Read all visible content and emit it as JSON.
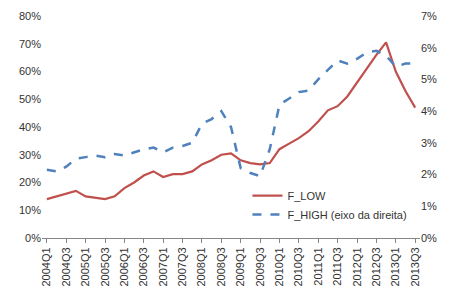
{
  "chart_data": {
    "type": "line",
    "categories": [
      "2004Q1",
      null,
      "2004Q3",
      null,
      "2005Q1",
      null,
      "2005Q3",
      null,
      "2006Q1",
      null,
      "2006Q3",
      null,
      "2007Q1",
      null,
      "2007Q3",
      null,
      "2008Q1",
      null,
      "2008Q3",
      null,
      "2009Q1",
      null,
      "2009Q3",
      null,
      "2010Q1",
      null,
      "2010Q3",
      null,
      "2011Q1",
      null,
      "2011Q3",
      null,
      "2012Q1",
      null,
      "2012Q3",
      null,
      "2013Q1",
      null,
      "2013Q3"
    ],
    "series": [
      {
        "name": "F_LOW",
        "color": "#c0504d",
        "line_style": "solid",
        "axis": "y",
        "values": [
          14,
          15,
          16,
          17,
          15,
          14.5,
          14,
          15,
          18,
          20,
          22.5,
          24,
          22,
          23,
          23,
          24,
          26.5,
          28,
          30,
          30.5,
          28,
          27,
          26.5,
          27,
          32,
          34,
          36,
          38.5,
          42,
          46,
          47.5,
          51,
          56,
          61,
          66,
          70.5,
          60,
          53,
          47
        ]
      },
      {
        "name": "F_HIGH (eixo da direita)",
        "color": "#4f81bd",
        "line_style": "dash",
        "axis": "y2",
        "values": [
          2.15,
          2.1,
          2.25,
          2.5,
          2.55,
          2.6,
          2.55,
          2.65,
          2.6,
          2.7,
          2.8,
          2.85,
          2.7,
          2.85,
          2.9,
          3.0,
          3.6,
          3.75,
          4.0,
          3.5,
          2.2,
          2.05,
          1.95,
          2.8,
          4.2,
          4.4,
          4.6,
          4.65,
          5.0,
          5.3,
          5.6,
          5.5,
          5.65,
          5.85,
          5.9,
          5.75,
          5.4,
          5.5,
          5.5
        ]
      }
    ],
    "ylim": [
      0,
      80
    ],
    "yticks": [
      {
        "value": 0,
        "label": "0%"
      },
      {
        "value": 10,
        "label": "10%"
      },
      {
        "value": 20,
        "label": "20%"
      },
      {
        "value": 30,
        "label": "30%"
      },
      {
        "value": 40,
        "label": "40%"
      },
      {
        "value": 50,
        "label": "50%"
      },
      {
        "value": 60,
        "label": "60%"
      },
      {
        "value": 70,
        "label": "70%"
      },
      {
        "value": 80,
        "label": "80%"
      }
    ],
    "y2lim": [
      0,
      7
    ],
    "y2ticks": [
      {
        "value": 0,
        "label": "0%"
      },
      {
        "value": 1,
        "label": "1%"
      },
      {
        "value": 2,
        "label": "2%"
      },
      {
        "value": 3,
        "label": "3%"
      },
      {
        "value": 4,
        "label": "4%"
      },
      {
        "value": 5,
        "label": "5%"
      },
      {
        "value": 6,
        "label": "6%"
      },
      {
        "value": 7,
        "label": "7%"
      }
    ],
    "grid": false,
    "legend": "lower right"
  }
}
